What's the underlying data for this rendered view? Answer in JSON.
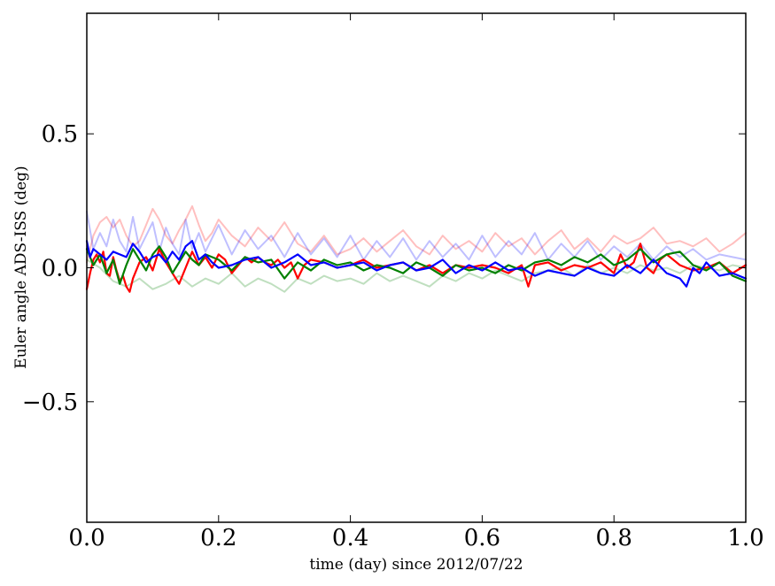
{
  "chart_data": {
    "type": "line",
    "xlabel": "time (day) since 2012/07/22",
    "ylabel": "Euler angle ADS-ISS (deg)",
    "xlim": [
      0.0,
      1.0
    ],
    "ylim": [
      -0.95,
      0.95
    ],
    "xticks": [
      0.0,
      0.2,
      0.4,
      0.6,
      0.8,
      1.0
    ],
    "xtick_labels": [
      "0.0",
      "0.2",
      "0.4",
      "0.6",
      "0.8",
      "1.0"
    ],
    "yticks": [
      0.5,
      0.0,
      -0.5
    ],
    "ytick_labels": [
      "0.5",
      "0.0",
      "−0.5"
    ],
    "grid": false,
    "series": [
      {
        "color": "#ff0000",
        "opacity": 0.25,
        "width": 2,
        "x": [
          0.0,
          0.01,
          0.02,
          0.03,
          0.04,
          0.05,
          0.06,
          0.07,
          0.08,
          0.09,
          0.1,
          0.11,
          0.12,
          0.13,
          0.14,
          0.15,
          0.16,
          0.17,
          0.18,
          0.19,
          0.2,
          0.22,
          0.24,
          0.26,
          0.28,
          0.3,
          0.32,
          0.34,
          0.36,
          0.38,
          0.4,
          0.42,
          0.44,
          0.46,
          0.48,
          0.5,
          0.52,
          0.54,
          0.56,
          0.58,
          0.6,
          0.62,
          0.64,
          0.66,
          0.68,
          0.7,
          0.72,
          0.74,
          0.76,
          0.78,
          0.8,
          0.82,
          0.84,
          0.86,
          0.88,
          0.9,
          0.92,
          0.94,
          0.96,
          0.98,
          1.0
        ],
        "y": [
          0.02,
          0.12,
          0.17,
          0.19,
          0.15,
          0.18,
          0.12,
          0.08,
          0.1,
          0.16,
          0.22,
          0.18,
          0.12,
          0.09,
          0.14,
          0.18,
          0.23,
          0.16,
          0.1,
          0.13,
          0.18,
          0.12,
          0.08,
          0.15,
          0.1,
          0.17,
          0.09,
          0.06,
          0.12,
          0.05,
          0.07,
          0.11,
          0.06,
          0.1,
          0.14,
          0.08,
          0.05,
          0.12,
          0.07,
          0.1,
          0.06,
          0.13,
          0.08,
          0.11,
          0.05,
          0.1,
          0.14,
          0.07,
          0.11,
          0.06,
          0.12,
          0.09,
          0.11,
          0.15,
          0.09,
          0.1,
          0.08,
          0.11,
          0.06,
          0.09,
          0.13
        ]
      },
      {
        "color": "#008000",
        "opacity": 0.25,
        "width": 2,
        "x": [
          0.0,
          0.02,
          0.04,
          0.06,
          0.08,
          0.1,
          0.12,
          0.14,
          0.16,
          0.18,
          0.2,
          0.22,
          0.24,
          0.26,
          0.28,
          0.3,
          0.32,
          0.34,
          0.36,
          0.38,
          0.4,
          0.42,
          0.44,
          0.46,
          0.48,
          0.5,
          0.52,
          0.54,
          0.56,
          0.58,
          0.6,
          0.62,
          0.64,
          0.66,
          0.68,
          0.7,
          0.72,
          0.74,
          0.76,
          0.78,
          0.8,
          0.82,
          0.84,
          0.86,
          0.88,
          0.9,
          0.92,
          0.94,
          0.96,
          0.98,
          1.0
        ],
        "y": [
          0.03,
          0.0,
          -0.05,
          -0.07,
          -0.04,
          -0.08,
          -0.06,
          -0.03,
          -0.07,
          -0.04,
          -0.06,
          -0.02,
          -0.07,
          -0.04,
          -0.06,
          -0.09,
          -0.04,
          -0.06,
          -0.03,
          -0.05,
          -0.04,
          -0.06,
          -0.02,
          -0.05,
          -0.03,
          -0.05,
          -0.07,
          -0.03,
          -0.05,
          -0.02,
          -0.04,
          -0.01,
          -0.03,
          -0.05,
          -0.02,
          -0.01,
          0.0,
          -0.03,
          0.01,
          -0.02,
          0.0,
          -0.02,
          0.01,
          -0.01,
          0.0,
          -0.02,
          0.01,
          0.0,
          -0.01,
          0.01,
          0.0
        ]
      },
      {
        "color": "#0000ff",
        "opacity": 0.25,
        "width": 2,
        "x": [
          0.0,
          0.01,
          0.02,
          0.03,
          0.04,
          0.05,
          0.06,
          0.07,
          0.08,
          0.09,
          0.1,
          0.11,
          0.12,
          0.13,
          0.14,
          0.15,
          0.16,
          0.17,
          0.18,
          0.2,
          0.22,
          0.24,
          0.26,
          0.28,
          0.3,
          0.32,
          0.34,
          0.36,
          0.38,
          0.4,
          0.42,
          0.44,
          0.46,
          0.48,
          0.5,
          0.52,
          0.54,
          0.56,
          0.58,
          0.6,
          0.62,
          0.64,
          0.66,
          0.68,
          0.7,
          0.72,
          0.74,
          0.76,
          0.78,
          0.8,
          0.82,
          0.84,
          0.86,
          0.88,
          0.9,
          0.92,
          0.94,
          0.96,
          0.98,
          1.0
        ],
        "y": [
          0.21,
          0.07,
          0.13,
          0.08,
          0.18,
          0.1,
          0.06,
          0.19,
          0.07,
          0.12,
          0.17,
          0.06,
          0.15,
          0.09,
          0.05,
          0.18,
          0.07,
          0.13,
          0.06,
          0.16,
          0.05,
          0.14,
          0.07,
          0.12,
          0.04,
          0.13,
          0.05,
          0.11,
          0.04,
          0.12,
          0.03,
          0.1,
          0.04,
          0.11,
          0.03,
          0.1,
          0.04,
          0.09,
          0.03,
          0.12,
          0.04,
          0.1,
          0.05,
          0.13,
          0.03,
          0.09,
          0.04,
          0.1,
          0.03,
          0.08,
          0.04,
          0.09,
          0.03,
          0.08,
          0.04,
          0.07,
          0.03,
          0.05,
          0.04,
          0.03
        ]
      },
      {
        "color": "#ff0000",
        "opacity": 1,
        "width": 2.2,
        "x": [
          0.0,
          0.005,
          0.01,
          0.015,
          0.02,
          0.025,
          0.03,
          0.035,
          0.04,
          0.045,
          0.05,
          0.055,
          0.06,
          0.065,
          0.07,
          0.08,
          0.09,
          0.1,
          0.11,
          0.12,
          0.13,
          0.14,
          0.15,
          0.16,
          0.17,
          0.18,
          0.19,
          0.2,
          0.21,
          0.22,
          0.23,
          0.24,
          0.25,
          0.26,
          0.27,
          0.28,
          0.29,
          0.3,
          0.31,
          0.32,
          0.33,
          0.34,
          0.36,
          0.38,
          0.4,
          0.42,
          0.44,
          0.46,
          0.48,
          0.5,
          0.52,
          0.54,
          0.56,
          0.58,
          0.6,
          0.62,
          0.64,
          0.66,
          0.67,
          0.68,
          0.7,
          0.72,
          0.74,
          0.76,
          0.78,
          0.8,
          0.81,
          0.82,
          0.83,
          0.84,
          0.85,
          0.86,
          0.87,
          0.88,
          0.9,
          0.92,
          0.94,
          0.96,
          0.98,
          1.0
        ],
        "y": [
          -0.08,
          -0.02,
          0.03,
          0.05,
          0.02,
          0.06,
          -0.02,
          -0.03,
          0.04,
          -0.01,
          -0.05,
          -0.03,
          -0.07,
          -0.09,
          -0.04,
          0.02,
          0.04,
          -0.01,
          0.07,
          0.02,
          -0.02,
          -0.06,
          0.0,
          0.06,
          0.01,
          0.04,
          0.0,
          0.05,
          0.03,
          -0.02,
          0.01,
          0.04,
          0.02,
          0.04,
          0.02,
          0.01,
          0.03,
          0.0,
          0.02,
          -0.04,
          0.01,
          0.03,
          0.02,
          0.0,
          0.01,
          0.03,
          0.0,
          0.01,
          0.02,
          -0.01,
          0.01,
          -0.02,
          0.01,
          0.0,
          0.01,
          0.0,
          -0.02,
          0.01,
          -0.07,
          0.01,
          0.02,
          -0.01,
          0.01,
          0.0,
          0.02,
          -0.02,
          0.05,
          0.0,
          0.02,
          0.09,
          0.0,
          -0.02,
          0.03,
          0.05,
          0.01,
          -0.01,
          0.0,
          0.02,
          -0.02,
          0.01
        ]
      },
      {
        "color": "#008000",
        "opacity": 1,
        "width": 2.2,
        "x": [
          0.0,
          0.01,
          0.02,
          0.03,
          0.04,
          0.05,
          0.06,
          0.07,
          0.08,
          0.09,
          0.1,
          0.11,
          0.12,
          0.13,
          0.14,
          0.15,
          0.16,
          0.17,
          0.18,
          0.2,
          0.22,
          0.24,
          0.26,
          0.28,
          0.3,
          0.32,
          0.34,
          0.36,
          0.38,
          0.4,
          0.42,
          0.44,
          0.46,
          0.48,
          0.5,
          0.52,
          0.54,
          0.56,
          0.58,
          0.6,
          0.62,
          0.64,
          0.66,
          0.68,
          0.7,
          0.72,
          0.74,
          0.76,
          0.78,
          0.8,
          0.82,
          0.84,
          0.86,
          0.88,
          0.9,
          0.92,
          0.94,
          0.96,
          0.98,
          1.0
        ],
        "y": [
          0.07,
          0.01,
          0.05,
          -0.02,
          0.03,
          -0.06,
          0.01,
          0.07,
          0.03,
          -0.01,
          0.05,
          0.08,
          0.04,
          -0.02,
          0.02,
          0.06,
          0.03,
          0.01,
          0.05,
          0.03,
          -0.01,
          0.04,
          0.02,
          0.03,
          -0.04,
          0.02,
          -0.01,
          0.03,
          0.01,
          0.02,
          -0.01,
          0.01,
          0.0,
          -0.02,
          0.02,
          0.0,
          -0.03,
          0.01,
          -0.01,
          0.0,
          -0.02,
          0.01,
          -0.01,
          0.02,
          0.03,
          0.01,
          0.04,
          0.02,
          0.05,
          0.01,
          0.03,
          0.07,
          0.02,
          0.05,
          0.06,
          0.01,
          -0.01,
          0.02,
          -0.03,
          -0.05
        ]
      },
      {
        "color": "#0000ff",
        "opacity": 1,
        "width": 2.2,
        "x": [
          0.0,
          0.005,
          0.01,
          0.02,
          0.03,
          0.04,
          0.05,
          0.06,
          0.07,
          0.08,
          0.09,
          0.1,
          0.11,
          0.12,
          0.13,
          0.14,
          0.15,
          0.16,
          0.17,
          0.18,
          0.19,
          0.2,
          0.22,
          0.24,
          0.26,
          0.28,
          0.3,
          0.32,
          0.34,
          0.36,
          0.38,
          0.4,
          0.42,
          0.44,
          0.46,
          0.48,
          0.5,
          0.52,
          0.54,
          0.56,
          0.58,
          0.6,
          0.62,
          0.64,
          0.66,
          0.68,
          0.7,
          0.72,
          0.74,
          0.76,
          0.78,
          0.8,
          0.82,
          0.84,
          0.86,
          0.88,
          0.9,
          0.91,
          0.92,
          0.93,
          0.94,
          0.96,
          0.98,
          1.0
        ],
        "y": [
          0.1,
          0.04,
          0.07,
          0.05,
          0.03,
          0.06,
          0.05,
          0.04,
          0.09,
          0.06,
          0.02,
          0.04,
          0.05,
          0.02,
          0.06,
          0.03,
          0.08,
          0.1,
          0.03,
          0.05,
          0.02,
          0.0,
          0.01,
          0.03,
          0.04,
          0.0,
          0.02,
          0.05,
          0.01,
          0.02,
          0.0,
          0.01,
          0.02,
          -0.01,
          0.01,
          0.02,
          -0.01,
          0.0,
          0.03,
          -0.02,
          0.01,
          -0.01,
          0.02,
          -0.01,
          0.0,
          -0.03,
          -0.01,
          -0.02,
          -0.03,
          0.0,
          -0.02,
          -0.03,
          0.01,
          -0.02,
          0.03,
          -0.02,
          -0.04,
          -0.07,
          0.0,
          -0.02,
          0.02,
          -0.03,
          -0.02,
          -0.04
        ]
      }
    ]
  }
}
